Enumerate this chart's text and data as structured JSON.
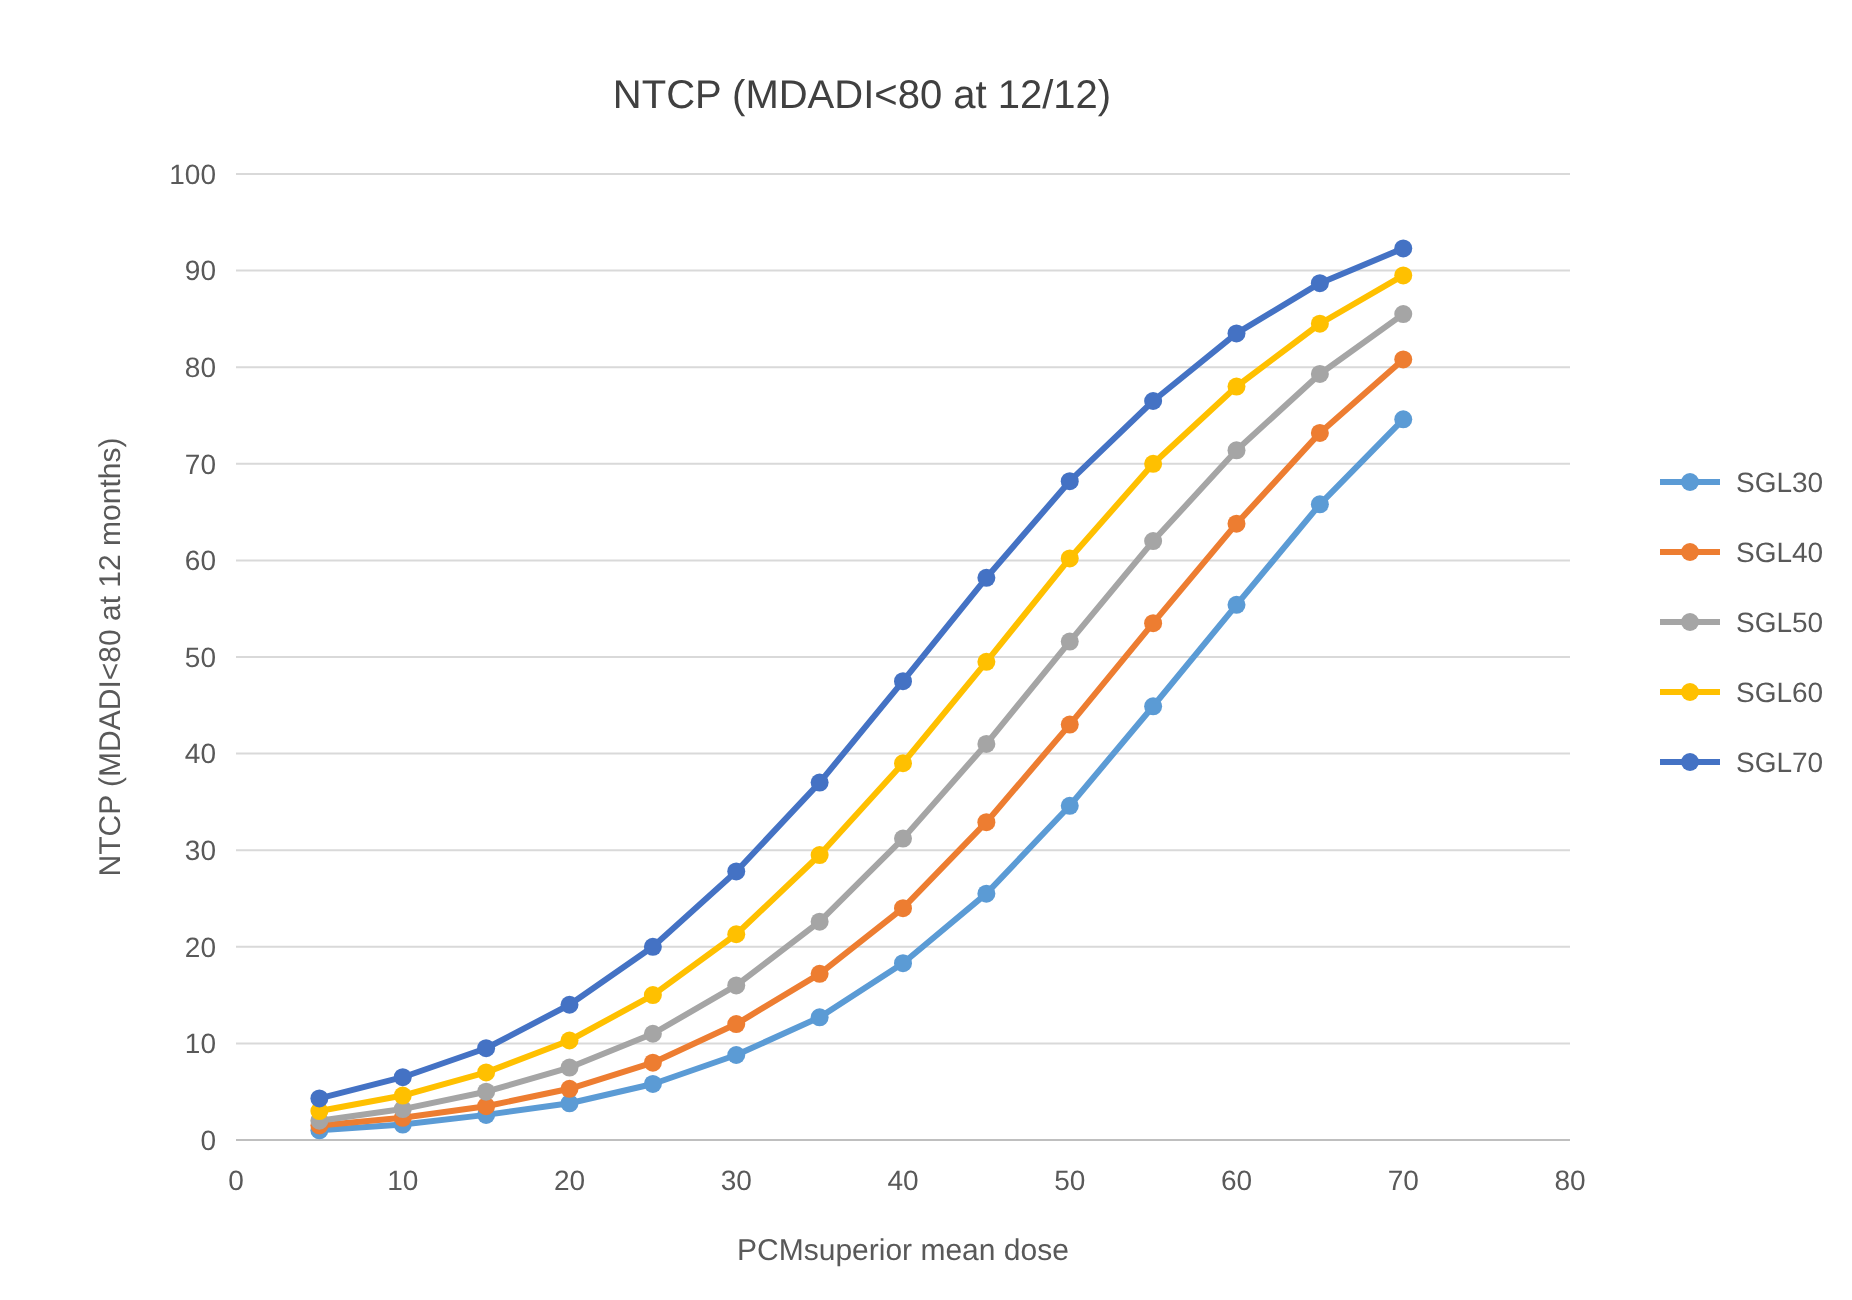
{
  "chart_data": {
    "type": "line",
    "title": "NTCP (MDADI<80 at 12/12)",
    "xlabel": "PCMsuperior mean dose",
    "ylabel": "NTCP (MDADI<80 at 12 months)",
    "x": [
      5,
      10,
      15,
      20,
      25,
      30,
      35,
      40,
      45,
      50,
      55,
      60,
      65,
      70
    ],
    "xlim": [
      0,
      80
    ],
    "xticks": [
      0,
      10,
      20,
      30,
      40,
      50,
      60,
      70,
      80
    ],
    "ylim": [
      0,
      100
    ],
    "yticks": [
      0,
      10,
      20,
      30,
      40,
      50,
      60,
      70,
      80,
      90,
      100
    ],
    "grid": "y",
    "legend": "right",
    "marker": "circle",
    "line_style": "solid",
    "series": [
      {
        "name": "SGL30",
        "color": "#5b9bd5",
        "values": [
          1,
          1.6,
          2.6,
          3.8,
          5.8,
          8.8,
          12.7,
          18.3,
          25.5,
          34.6,
          44.9,
          55.4,
          65.8,
          74.6
        ]
      },
      {
        "name": "SGL40",
        "color": "#ed7d31",
        "values": [
          1.5,
          2.3,
          3.5,
          5.3,
          8,
          12,
          17.2,
          24,
          32.9,
          43,
          53.5,
          63.8,
          73.2,
          80.8
        ]
      },
      {
        "name": "SGL50",
        "color": "#a5a5a5",
        "values": [
          2,
          3.2,
          5,
          7.5,
          11,
          16,
          22.6,
          31.2,
          41,
          51.6,
          62,
          71.4,
          79.3,
          85.5
        ]
      },
      {
        "name": "SGL60",
        "color": "#ffc000",
        "values": [
          3,
          4.6,
          7,
          10.3,
          15,
          21.3,
          29.5,
          39,
          49.5,
          60.2,
          70,
          78,
          84.5,
          89.5
        ]
      },
      {
        "name": "SGL70",
        "color": "#4472c4",
        "values": [
          4.3,
          6.5,
          9.5,
          14,
          20,
          27.8,
          37,
          47.5,
          58.2,
          68.2,
          76.5,
          83.5,
          88.7,
          92.3
        ]
      }
    ]
  }
}
